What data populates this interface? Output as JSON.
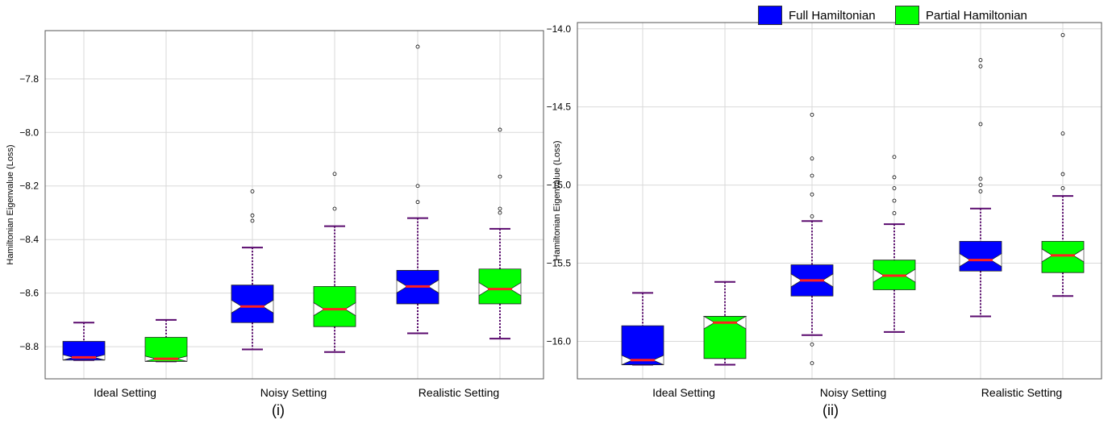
{
  "legend": {
    "items": [
      {
        "label": "Full Hamiltonian",
        "color": "#0000ff"
      },
      {
        "label": "Partial Hamiltonian",
        "color": "#00ff00"
      }
    ]
  },
  "colors": {
    "median": "#ff2020",
    "whisker": "#5a0a6e",
    "box_edge": "#222222",
    "grid": "#d9d9d9"
  },
  "chart_data": [
    {
      "type": "box",
      "caption": "(i)",
      "ylabel": "Hamiltonian Eigenvalue (Loss)",
      "ylim": [
        -8.92,
        -7.62
      ],
      "yticks": [
        -8.8,
        -8.6,
        -8.4,
        -8.2,
        -8.0,
        -7.8
      ],
      "grid": true,
      "notched": true,
      "categories": [
        "Ideal Setting",
        "Noisy Setting",
        "Realistic Setting"
      ],
      "series": [
        {
          "name": "Full Hamiltonian",
          "boxes": [
            {
              "whislo": -8.85,
              "q1": -8.85,
              "med": -8.84,
              "q3": -8.78,
              "whishi": -8.71,
              "fliers": []
            },
            {
              "whislo": -8.81,
              "q1": -8.71,
              "med": -8.65,
              "q3": -8.57,
              "whishi": -8.43,
              "fliers": [
                -8.33,
                -8.31,
                -8.22
              ]
            },
            {
              "whislo": -8.75,
              "q1": -8.64,
              "med": -8.575,
              "q3": -8.515,
              "whishi": -8.32,
              "fliers": [
                -8.26,
                -8.2,
                -7.68
              ]
            }
          ]
        },
        {
          "name": "Partial Hamiltonian",
          "boxes": [
            {
              "whislo": -8.855,
              "q1": -8.855,
              "med": -8.845,
              "q3": -8.765,
              "whishi": -8.7,
              "fliers": []
            },
            {
              "whislo": -8.82,
              "q1": -8.725,
              "med": -8.66,
              "q3": -8.575,
              "whishi": -8.35,
              "fliers": [
                -8.285,
                -8.155
              ]
            },
            {
              "whislo": -8.77,
              "q1": -8.64,
              "med": -8.585,
              "q3": -8.51,
              "whishi": -8.36,
              "fliers": [
                -8.3,
                -8.285,
                -8.165,
                -7.99
              ]
            }
          ]
        }
      ]
    },
    {
      "type": "box",
      "caption": "(ii)",
      "ylabel": "Hamiltonian Eigenvalue (Loss)",
      "ylim": [
        -16.24,
        -13.96
      ],
      "yticks": [
        -16.0,
        -15.5,
        -15.0,
        -14.5,
        -14.0
      ],
      "grid": true,
      "notched": true,
      "categories": [
        "Ideal Setting",
        "Noisy Setting",
        "Realistic Setting"
      ],
      "series": [
        {
          "name": "Full Hamiltonian",
          "boxes": [
            {
              "whislo": -16.15,
              "q1": -16.15,
              "med": -16.12,
              "q3": -15.9,
              "whishi": -15.69,
              "fliers": []
            },
            {
              "whislo": -15.96,
              "q1": -15.71,
              "med": -15.61,
              "q3": -15.51,
              "whishi": -15.23,
              "fliers": [
                -16.14,
                -16.02,
                -15.2,
                -15.06,
                -14.94,
                -14.83,
                -14.55
              ]
            },
            {
              "whislo": -15.84,
              "q1": -15.55,
              "med": -15.48,
              "q3": -15.36,
              "whishi": -15.15,
              "fliers": [
                -15.04,
                -15.0,
                -14.96,
                -14.61,
                -14.24,
                -14.2
              ]
            }
          ]
        },
        {
          "name": "Partial Hamiltonian",
          "boxes": [
            {
              "whislo": -16.15,
              "q1": -16.11,
              "med": -15.88,
              "q3": -15.84,
              "whishi": -15.62,
              "fliers": []
            },
            {
              "whislo": -15.94,
              "q1": -15.67,
              "med": -15.58,
              "q3": -15.48,
              "whishi": -15.25,
              "fliers": [
                -15.18,
                -15.1,
                -15.02,
                -14.95,
                -14.82
              ]
            },
            {
              "whislo": -15.71,
              "q1": -15.56,
              "med": -15.45,
              "q3": -15.36,
              "whishi": -15.07,
              "fliers": [
                -15.02,
                -14.93,
                -14.67,
                -14.04
              ]
            }
          ]
        }
      ]
    }
  ]
}
